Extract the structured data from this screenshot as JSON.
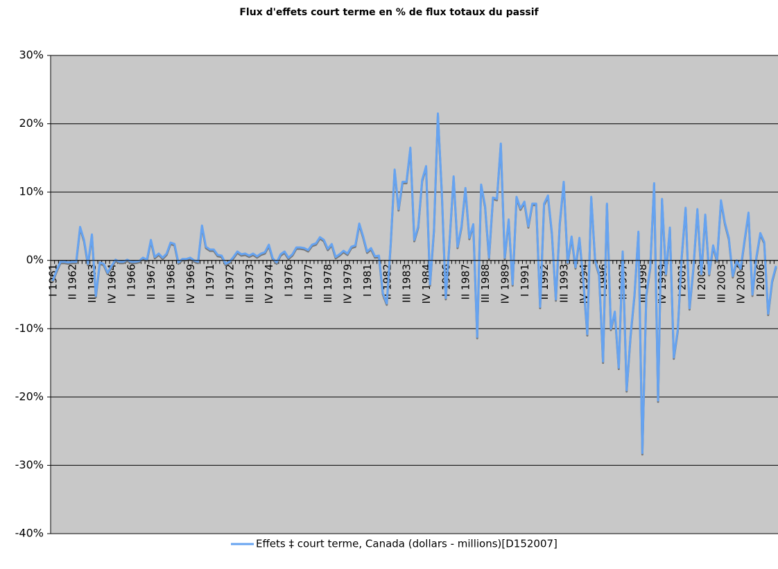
{
  "chart_data": {
    "type": "line",
    "title": "Flux d'effets court terme en % de flux totaux du passif",
    "categories": [
      "I 1961",
      null,
      null,
      null,
      null,
      "II 1962",
      null,
      null,
      null,
      null,
      "III 1963",
      null,
      null,
      null,
      null,
      "IV 1964",
      null,
      null,
      null,
      null,
      "I 1966",
      null,
      null,
      null,
      null,
      "II 1967",
      null,
      null,
      null,
      null,
      "III 1968",
      null,
      null,
      null,
      null,
      "IV 1969",
      null,
      null,
      null,
      null,
      "I 1971",
      null,
      null,
      null,
      null,
      "II 1972",
      null,
      null,
      null,
      null,
      "III 1973",
      null,
      null,
      null,
      null,
      "IV 1974",
      null,
      null,
      null,
      null,
      "I 1976",
      null,
      null,
      null,
      null,
      "II 1977",
      null,
      null,
      null,
      null,
      "III 1978",
      null,
      null,
      null,
      null,
      "IV 1979",
      null,
      null,
      null,
      null,
      "I 1981",
      null,
      null,
      null,
      null,
      "II 1982",
      null,
      null,
      null,
      null,
      "III 1983",
      null,
      null,
      null,
      null,
      "IV 1984",
      null,
      null,
      null,
      null,
      "I 1986",
      null,
      null,
      null,
      null,
      "II 1987",
      null,
      null,
      null,
      null,
      "III 1988",
      null,
      null,
      null,
      null,
      "IV 1989",
      null,
      null,
      null,
      null,
      "I 1991",
      null,
      null,
      null,
      null,
      "II 1992",
      null,
      null,
      null,
      null,
      "III 1993",
      null,
      null,
      null,
      null,
      "IV 1994",
      null,
      null,
      null,
      null,
      "I 1996",
      null,
      null,
      null,
      null,
      "II 1997",
      null,
      null,
      null,
      null,
      "III 1998",
      null,
      null,
      null,
      null,
      "IV 1999",
      null,
      null,
      null,
      null,
      "I 2001",
      null,
      null,
      null,
      null,
      "II 2002",
      null,
      null,
      null,
      null,
      "III 2003",
      null,
      null,
      null,
      null,
      "IV 2004",
      null,
      null,
      null,
      null,
      "I 2006",
      null,
      null,
      null,
      null
    ],
    "series": [
      {
        "name": "Effets ‡ court terme, Canada (dollars - millions)[D152007]",
        "color": "#66a3f0",
        "values": [
          -3.0,
          -1.5,
          -0.2,
          -0.2,
          -0.3,
          -0.2,
          -0.2,
          4.9,
          3.0,
          -0.5,
          3.8,
          -5.2,
          -0.3,
          -0.5,
          -1.8,
          -0.8,
          0.1,
          -0.2,
          -0.2,
          0.1,
          -0.2,
          -0.2,
          -0.1,
          0.4,
          0.1,
          3.0,
          0.5,
          1.0,
          0.4,
          1.0,
          2.6,
          2.4,
          -0.3,
          0.2,
          0.2,
          0.4,
          0.0,
          -0.2,
          5.1,
          2.0,
          1.6,
          1.6,
          0.8,
          0.7,
          -0.5,
          -0.2,
          0.5,
          1.3,
          0.9,
          1.0,
          0.7,
          1.0,
          0.6,
          1.0,
          1.2,
          2.3,
          0.3,
          -0.3,
          0.9,
          1.3,
          0.4,
          0.9,
          1.9,
          1.9,
          1.8,
          1.5,
          2.3,
          2.5,
          3.4,
          3.0,
          1.7,
          2.4,
          0.5,
          0.9,
          1.4,
          1.0,
          2.0,
          2.2,
          5.4,
          3.5,
          1.3,
          1.8,
          0.6,
          0.7,
          -4.8,
          -6.3,
          2.5,
          13.3,
          7.5,
          11.5,
          11.5,
          16.5,
          3.0,
          5.0,
          11.8,
          13.8,
          -3.5,
          4.5,
          21.5,
          10.0,
          -5.5,
          3.2,
          12.3,
          2.0,
          5.0,
          10.6,
          3.3,
          5.3,
          -11.2,
          11.1,
          8.0,
          0.4,
          9.2,
          9.0,
          17.1,
          0.4,
          6.0,
          -3.5,
          9.3,
          7.6,
          8.6,
          5.0,
          8.3,
          8.3,
          -6.8,
          8.3,
          9.5,
          4.0,
          -5.7,
          5.5,
          11.5,
          -0.3,
          3.5,
          -1.0,
          3.3,
          -3.0,
          -10.8,
          9.3,
          0.0,
          -2.0,
          -14.8,
          8.3,
          -10.0,
          -7.5,
          -15.7,
          1.3,
          -19.0,
          -11.0,
          -5.0,
          4.2,
          -28.2,
          -5.0,
          -1.0,
          11.3,
          -20.5,
          9.0,
          -2.0,
          4.8,
          -14.2,
          -10.2,
          0.5,
          7.7,
          -7.0,
          -1.0,
          7.5,
          -2.0,
          6.7,
          -2.0,
          2.2,
          0.0,
          8.8,
          5.5,
          3.3,
          -2.3,
          0.0,
          -1.2,
          3.0,
          7.0,
          -5.0,
          0.5,
          4.0,
          2.7,
          -7.8,
          -3.0,
          -0.8
        ]
      }
    ],
    "ylim": [
      -40,
      30
    ],
    "yticks": [
      {
        "value": -40,
        "label": "-40%"
      },
      {
        "value": -30,
        "label": "-30%"
      },
      {
        "value": -20,
        "label": "-20%"
      },
      {
        "value": -10,
        "label": "-10%"
      },
      {
        "value": 0,
        "label": "0%"
      },
      {
        "value": 10,
        "label": "10%"
      },
      {
        "value": 20,
        "label": "20%"
      },
      {
        "value": 30,
        "label": "30%"
      }
    ],
    "grid": true
  }
}
